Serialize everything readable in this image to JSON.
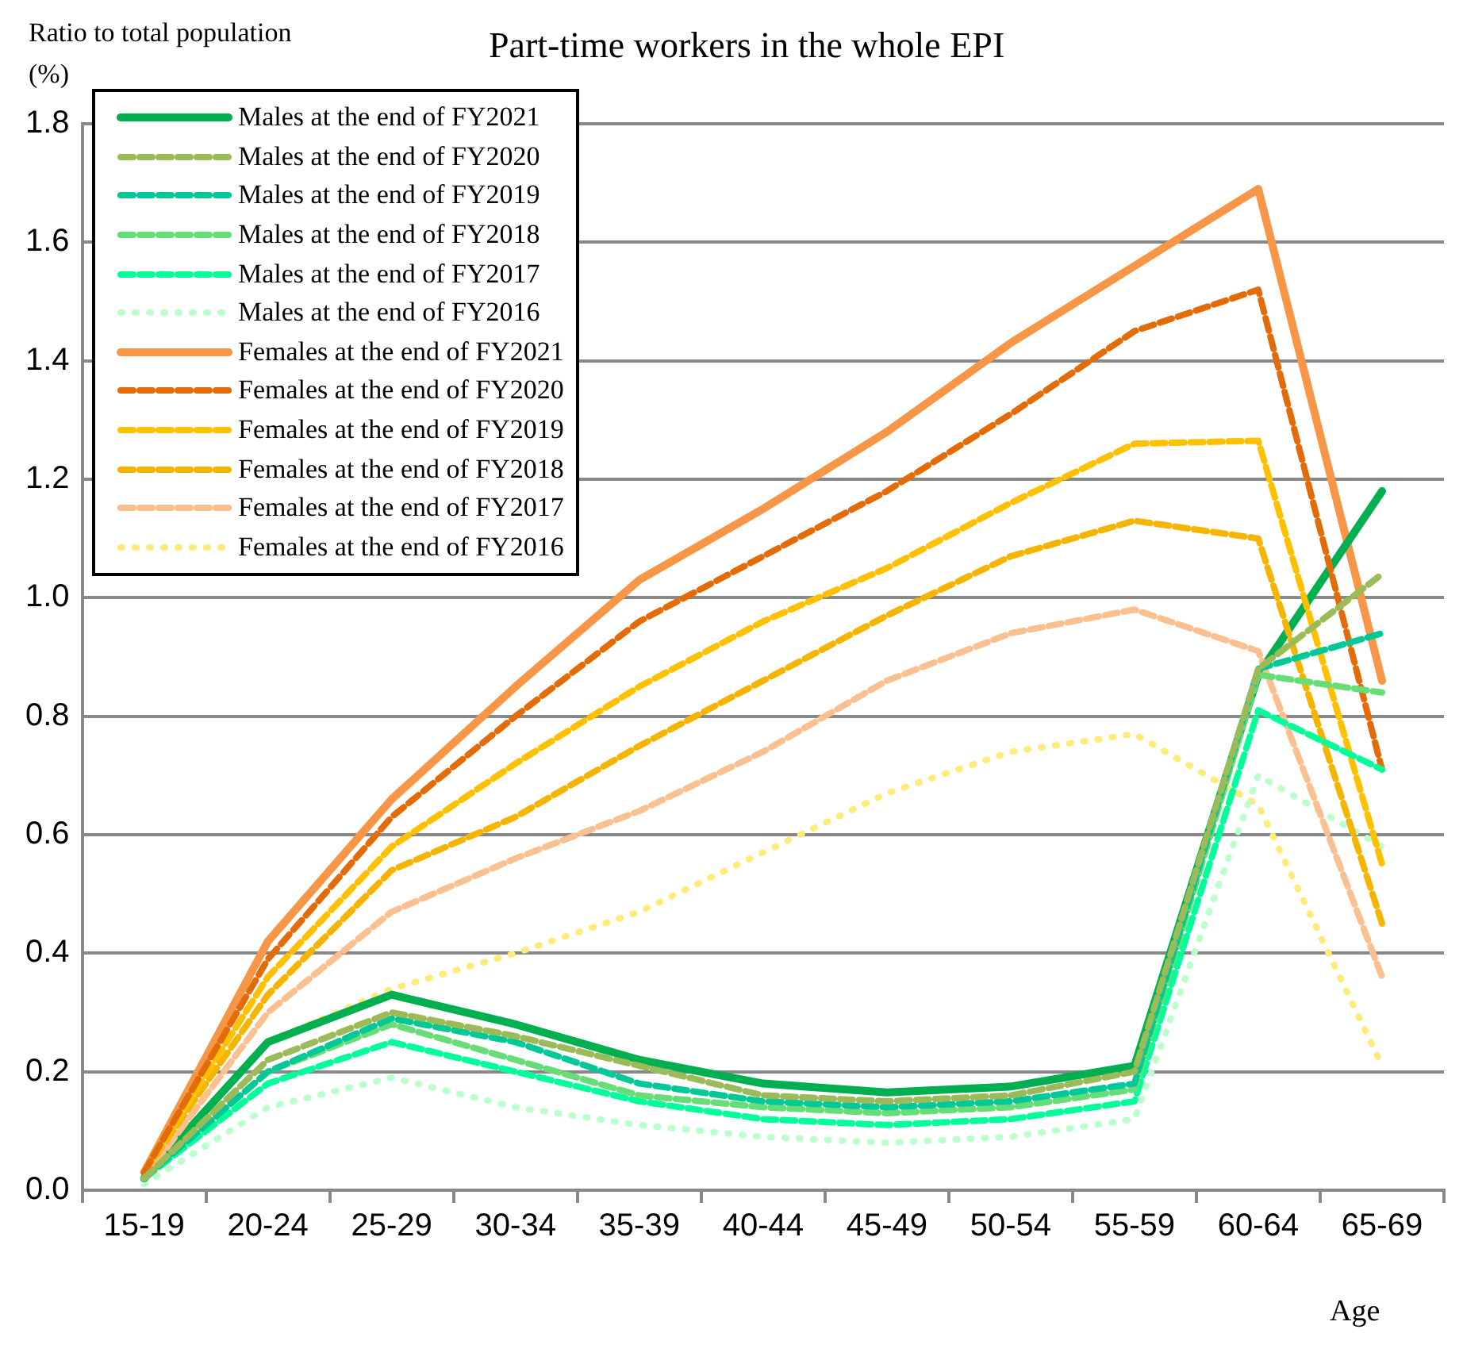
{
  "chart_data": {
    "type": "line",
    "title": "Part-time workers in the whole EPI",
    "ylabel": "Ratio to total population\n(%)",
    "xlabel": "Age",
    "categories": [
      "15-19",
      "20-24",
      "25-29",
      "30-34",
      "35-39",
      "40-44",
      "45-49",
      "50-54",
      "55-59",
      "60-64",
      "65-69"
    ],
    "ylim": [
      0,
      1.8
    ],
    "yticks": [
      {
        "value": 0,
        "label": "0.0"
      },
      {
        "value": 0.2,
        "label": "0.2"
      },
      {
        "value": 0.4,
        "label": "0.4"
      },
      {
        "value": 0.6,
        "label": "0.6"
      },
      {
        "value": 0.8,
        "label": "0.8"
      },
      {
        "value": 1,
        "label": "1.0"
      },
      {
        "value": 1.2,
        "label": "1.2"
      },
      {
        "value": 1.4,
        "label": "1.4"
      },
      {
        "value": 1.6,
        "label": "1.6"
      },
      {
        "value": 1.8,
        "label": "1.8"
      }
    ],
    "grid": "y",
    "legend": "top left",
    "marker": "none",
    "series": [
      {
        "name": "Males at the end of FY2021",
        "color": "#00b050",
        "line_style": "solid",
        "values": [
          0.02,
          0.25,
          0.33,
          0.28,
          0.22,
          0.18,
          0.165,
          0.175,
          0.21,
          0.87,
          1.18
        ]
      },
      {
        "name": "Males at the end of FY2020",
        "color": "#9bbb59",
        "line_style": "dashed",
        "values": [
          0.02,
          0.22,
          0.3,
          0.26,
          0.21,
          0.16,
          0.15,
          0.16,
          0.2,
          0.88,
          1.04
        ]
      },
      {
        "name": "Males at the end of FY2019",
        "color": "#00c896",
        "line_style": "dashed",
        "values": [
          0.02,
          0.2,
          0.29,
          0.25,
          0.18,
          0.15,
          0.14,
          0.15,
          0.18,
          0.88,
          0.94
        ]
      },
      {
        "name": "Males at the end of FY2018",
        "color": "#66dd77",
        "line_style": "dashed",
        "values": [
          0.02,
          0.2,
          0.28,
          0.22,
          0.16,
          0.14,
          0.13,
          0.14,
          0.17,
          0.87,
          0.84
        ]
      },
      {
        "name": "Males at the end of FY2017",
        "color": "#00ff99",
        "line_style": "dashed",
        "values": [
          0.02,
          0.18,
          0.25,
          0.2,
          0.15,
          0.12,
          0.11,
          0.12,
          0.15,
          0.81,
          0.71
        ]
      },
      {
        "name": "Males at the end of FY2016",
        "color": "#bbffcc",
        "line_style": "dotted",
        "values": [
          0.01,
          0.14,
          0.19,
          0.14,
          0.11,
          0.09,
          0.08,
          0.09,
          0.12,
          0.7,
          0.58
        ]
      },
      {
        "name": "Females at the end of FY2021",
        "color": "#f79646",
        "line_style": "solid",
        "values": [
          0.03,
          0.42,
          0.66,
          0.85,
          1.03,
          1.15,
          1.28,
          1.43,
          1.56,
          1.69,
          0.86
        ]
      },
      {
        "name": "Females at the end of FY2020",
        "color": "#e36c09",
        "line_style": "dashed",
        "values": [
          0.03,
          0.39,
          0.63,
          0.8,
          0.96,
          1.07,
          1.18,
          1.31,
          1.45,
          1.52,
          0.71
        ]
      },
      {
        "name": "Females at the end of FY2019",
        "color": "#ffc000",
        "line_style": "dashed",
        "values": [
          0.03,
          0.36,
          0.58,
          0.72,
          0.85,
          0.96,
          1.05,
          1.16,
          1.26,
          1.265,
          0.55
        ]
      },
      {
        "name": "Females at the end of FY2018",
        "color": "#f5b400",
        "line_style": "dashed",
        "values": [
          0.03,
          0.33,
          0.54,
          0.63,
          0.75,
          0.86,
          0.97,
          1.07,
          1.13,
          1.1,
          0.45
        ]
      },
      {
        "name": "Females at the end of FY2017",
        "color": "#fac090",
        "line_style": "dashed",
        "values": [
          0.02,
          0.3,
          0.47,
          0.56,
          0.64,
          0.74,
          0.86,
          0.94,
          0.98,
          0.91,
          0.36
        ]
      },
      {
        "name": "Females at the end of FY2016",
        "color": "#ffeb7a",
        "line_style": "dotted",
        "values": [
          0.02,
          0.25,
          0.34,
          0.4,
          0.47,
          0.57,
          0.67,
          0.74,
          0.77,
          0.65,
          0.21
        ]
      }
    ]
  }
}
